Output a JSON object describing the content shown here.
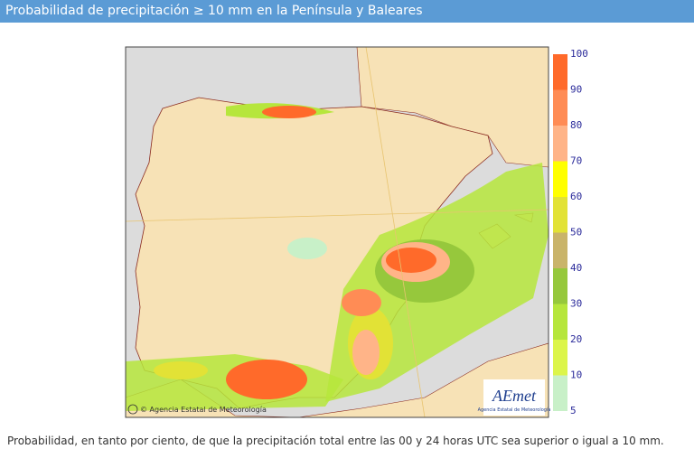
{
  "header": {
    "title": "Probabilidad de precipitación ≥ 10 mm en la Península y Baleares"
  },
  "map": {
    "credit": "© Agencia Estatal de Meteorología",
    "logo": "AEmet",
    "logo_subtitle": "Agencia Estatal de Meteorología"
  },
  "legend": {
    "ticks": [
      100,
      90,
      80,
      70,
      60,
      50,
      40,
      30,
      20,
      10,
      5
    ],
    "colors": [
      "#ff6a2a",
      "#ff8c55",
      "#ffb488",
      "#ffff00",
      "#e2e236",
      "#c9b46a",
      "#96c83c",
      "#b6e63c",
      "#dcf54a",
      "#c8f0c8"
    ]
  },
  "caption": "Probabilidad, en tanto por ciento, de que la precipitación total entre las 00 y 24 horas UTC sea superior o igual a 10 mm."
}
